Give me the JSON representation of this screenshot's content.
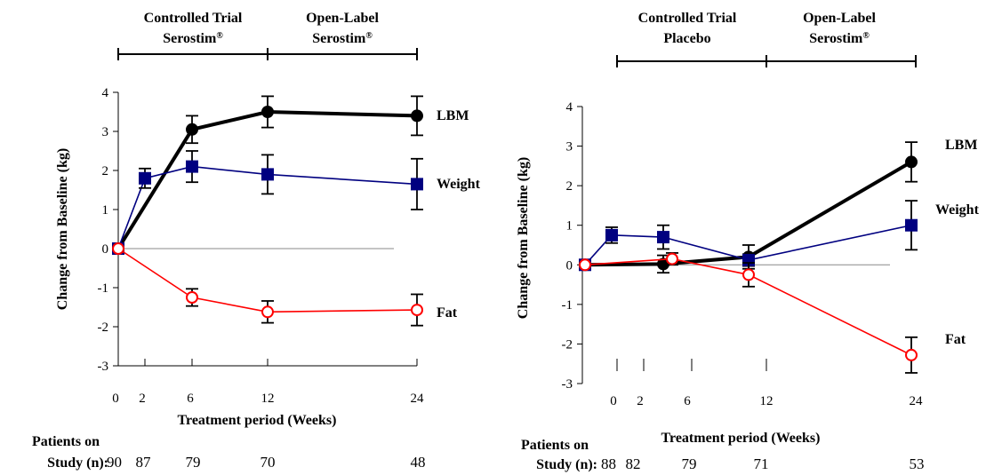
{
  "chart_data": [
    {
      "type": "line",
      "phase_labels": [
        {
          "line1": "Controlled Trial",
          "line2": "Serostim",
          "mark": "®"
        },
        {
          "line1": "Open-Label",
          "line2": "Serostim",
          "mark": "®"
        }
      ],
      "xlabel": "Treatment period (Weeks)",
      "ylabel": "Change from Baseline (kg)",
      "ylim": [
        -3,
        4
      ],
      "yticks": [
        "4",
        "3",
        "2",
        "1",
        "0",
        "-1",
        "-2",
        "-3"
      ],
      "xticks": [
        "0",
        "2",
        "6",
        "12",
        "24"
      ],
      "patients_label_1": "Patients on",
      "patients_label_2": "Study (n):",
      "patients": [
        "90",
        "87",
        "79",
        "70",
        "48"
      ],
      "series": [
        {
          "name": "LBM",
          "color": "#000000",
          "marker": "filled-circle",
          "points": [
            {
              "x": 0,
              "y": 0
            },
            {
              "x": 6,
              "y": 3.05,
              "err": 0.35
            },
            {
              "x": 12,
              "y": 3.5,
              "err": 0.4
            },
            {
              "x": 24,
              "y": 3.4,
              "err": 0.5
            }
          ]
        },
        {
          "name": "Weight",
          "color": "#000080",
          "marker": "filled-square",
          "points": [
            {
              "x": 0,
              "y": 0
            },
            {
              "x": 2,
              "y": 1.8,
              "err": 0.25
            },
            {
              "x": 6,
              "y": 2.1,
              "err": 0.4
            },
            {
              "x": 12,
              "y": 1.9,
              "err": 0.5
            },
            {
              "x": 24,
              "y": 1.65,
              "err": 0.65
            }
          ]
        },
        {
          "name": "Fat",
          "color": "#ff0000",
          "marker": "open-circle",
          "points": [
            {
              "x": 0,
              "y": 0
            },
            {
              "x": 6,
              "y": -1.25,
              "err": 0.22
            },
            {
              "x": 12,
              "y": -1.62,
              "err": 0.28
            },
            {
              "x": 24,
              "y": -1.57,
              "err": 0.4
            }
          ]
        }
      ]
    },
    {
      "type": "line",
      "phase_labels": [
        {
          "line1": "Controlled Trial",
          "line2": "Placebo",
          "mark": ""
        },
        {
          "line1": "Open-Label",
          "line2": "Serostim",
          "mark": "®"
        }
      ],
      "xlabel": "Treatment period (Weeks)",
      "ylabel": "Change from Baseline (kg)",
      "ylim": [
        -3,
        4
      ],
      "yticks": [
        "4",
        "3",
        "2",
        "1",
        "0",
        "-1",
        "-2",
        "-3"
      ],
      "xticks": [
        "0",
        "2",
        "6",
        "12",
        "24"
      ],
      "patients_label_1": "Patients on",
      "patients_label_2": "Study (n):",
      "patients": [
        "88",
        "82",
        "79",
        "71",
        "53"
      ],
      "series": [
        {
          "name": "LBM",
          "color": "#000000",
          "marker": "filled-circle",
          "points": [
            {
              "x": -2.5,
              "y": 0
            },
            {
              "x": 4,
              "y": 0.02,
              "err": 0.22
            },
            {
              "x": 11,
              "y": 0.2,
              "err": 0.3
            },
            {
              "x": 24,
              "y": 2.6,
              "err": 0.5
            }
          ]
        },
        {
          "name": "Weight",
          "color": "#000080",
          "marker": "filled-square",
          "points": [
            {
              "x": -2.5,
              "y": 0
            },
            {
              "x": 0,
              "y": 0.75,
              "err": 0.2
            },
            {
              "x": 4,
              "y": 0.7,
              "err": 0.3
            },
            {
              "x": 11,
              "y": 0.12,
              "err": 0.15
            },
            {
              "x": 24,
              "y": 1.0,
              "err": 0.62
            }
          ]
        },
        {
          "name": "Fat",
          "color": "#ff0000",
          "marker": "open-circle",
          "points": [
            {
              "x": -2.5,
              "y": 0
            },
            {
              "x": 4.5,
              "y": 0.15,
              "err": 0.15
            },
            {
              "x": 11,
              "y": -0.25,
              "err": 0.3
            },
            {
              "x": 24,
              "y": -2.28,
              "err": 0.45
            }
          ]
        }
      ]
    }
  ]
}
